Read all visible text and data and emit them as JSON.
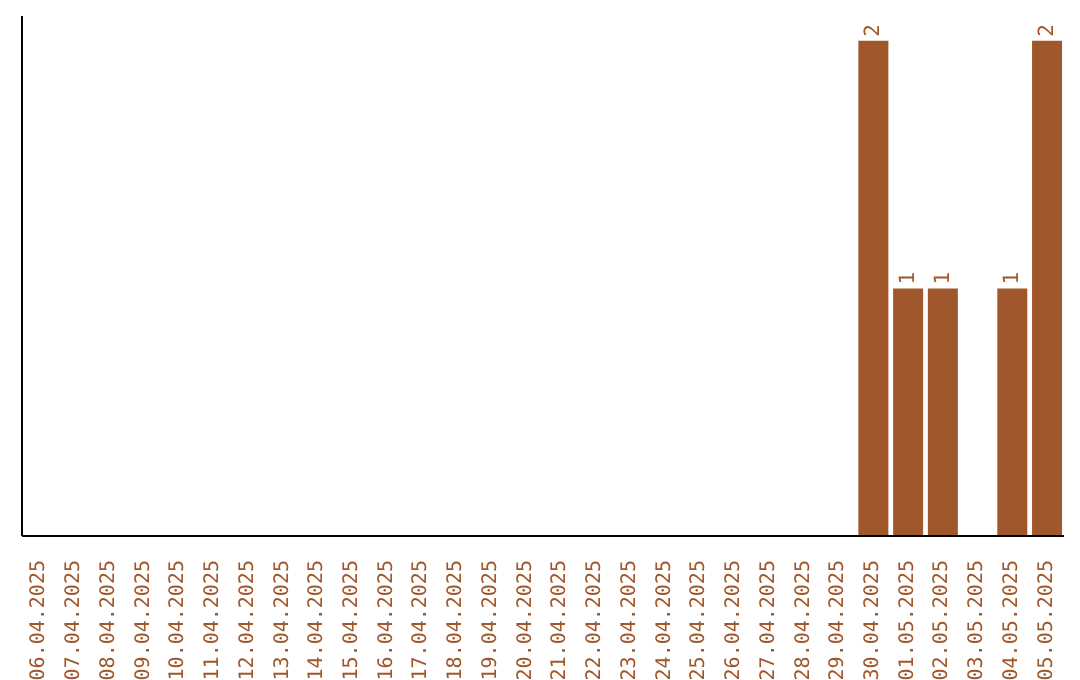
{
  "chart_data": {
    "type": "bar",
    "categories": [
      "06.04.2025",
      "07.04.2025",
      "08.04.2025",
      "09.04.2025",
      "10.04.2025",
      "11.04.2025",
      "12.04.2025",
      "13.04.2025",
      "14.04.2025",
      "15.04.2025",
      "16.04.2025",
      "17.04.2025",
      "18.04.2025",
      "19.04.2025",
      "20.04.2025",
      "21.04.2025",
      "22.04.2025",
      "23.04.2025",
      "24.04.2025",
      "25.04.2025",
      "26.04.2025",
      "27.04.2025",
      "28.04.2025",
      "29.04.2025",
      "30.04.2025",
      "01.05.2025",
      "02.05.2025",
      "03.05.2025",
      "04.05.2025",
      "05.05.2025"
    ],
    "values": [
      null,
      null,
      null,
      null,
      null,
      null,
      null,
      null,
      null,
      null,
      null,
      null,
      null,
      null,
      null,
      null,
      null,
      null,
      null,
      null,
      null,
      null,
      null,
      null,
      2,
      1,
      1,
      null,
      1,
      2
    ],
    "data_labels": true,
    "color": "#a0572b",
    "grid": false,
    "legend": false
  }
}
